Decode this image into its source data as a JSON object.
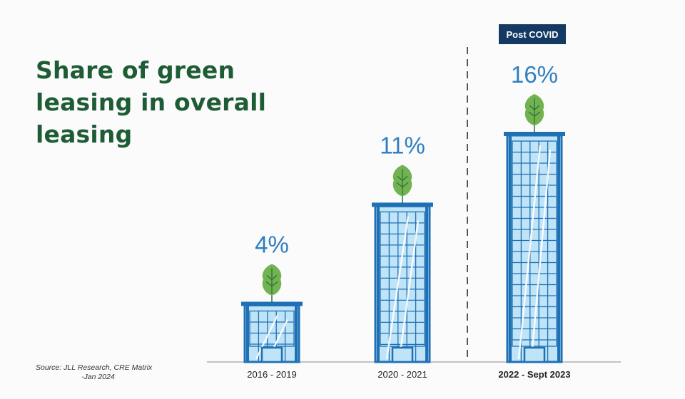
{
  "title": "Share of green leasing in overall leasing",
  "source": {
    "line1": "Source: JLL Research, CRE Matrix",
    "line2": "-Jan 2024"
  },
  "chart_data": {
    "type": "bar",
    "categories": [
      "2016 - 2019",
      "2020 - 2021",
      "2022 - Sept 2023"
    ],
    "values": [
      4,
      11,
      16
    ],
    "value_labels": [
      "4%",
      "11%",
      "16%"
    ],
    "ylim": [
      0,
      16
    ],
    "annotation": {
      "label": "Post COVID",
      "before_category": "2022 - Sept 2023"
    }
  },
  "colors": {
    "title": "#1e5c35",
    "value_label": "#2f7fc1",
    "building_frame": "#1f70b5",
    "building_glass": "#bfe3f7",
    "leaf": "#72b351",
    "badge": "#143a63",
    "divider": "#555555"
  }
}
